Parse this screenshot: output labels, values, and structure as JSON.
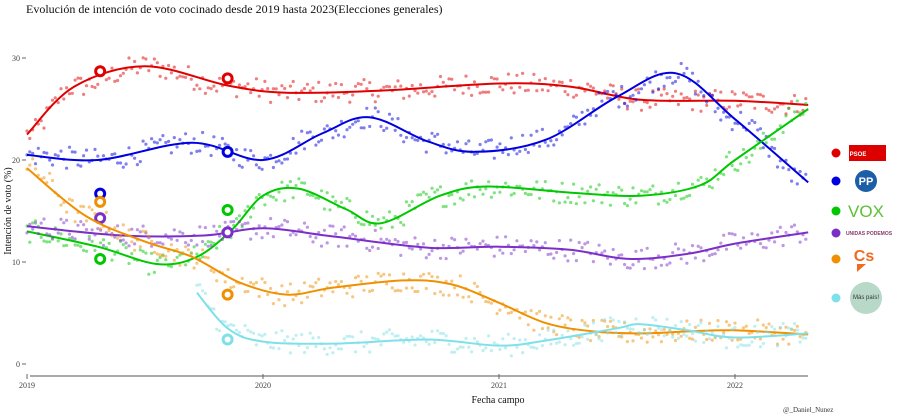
{
  "chart_data": {
    "type": "line",
    "title": "Evolución de intención de voto cocinado desde 2019 hasta 2023(Elecciones generales)",
    "xlabel": "Fecha campo",
    "ylabel": "Intención de voto (%)",
    "credit": "@_Daniel_Nunez",
    "xlim": [
      2019.0,
      2022.31
    ],
    "ylim": [
      -1.2,
      33.5
    ],
    "x_ticks": [
      {
        "v": 2019,
        "label": "2019"
      },
      {
        "v": 2020,
        "label": "2020"
      },
      {
        "v": 2021,
        "label": "2021"
      },
      {
        "v": 2022,
        "label": "2022"
      }
    ],
    "y_ticks": [
      {
        "v": 0,
        "label": "0"
      },
      {
        "v": 10,
        "label": "10"
      },
      {
        "v": 20,
        "label": "20"
      },
      {
        "v": 30,
        "label": "30"
      }
    ],
    "legend_position": "right",
    "elections": [
      2019.31,
      2019.85
    ],
    "series": [
      {
        "name": "PSOE",
        "color": "#e00000",
        "logo_text": "PSOE",
        "x": [
          2019.0,
          2019.2,
          2019.5,
          2019.85,
          2020.1,
          2020.5,
          2021.0,
          2021.3,
          2021.6,
          2022.0,
          2022.31
        ],
        "y": [
          22.5,
          27.2,
          29.2,
          27.3,
          26.6,
          26.8,
          27.5,
          27.2,
          25.9,
          25.8,
          25.4
        ],
        "election_results": [
          28.7,
          28.0
        ]
      },
      {
        "name": "PP",
        "color": "#0000e0",
        "logo_text": "PP",
        "x": [
          2019.0,
          2019.3,
          2019.7,
          2020.0,
          2020.25,
          2020.45,
          2020.7,
          2020.9,
          2021.2,
          2021.5,
          2021.75,
          2022.0,
          2022.31
        ],
        "y": [
          20.5,
          20.0,
          21.7,
          20.0,
          22.6,
          24.2,
          21.8,
          20.8,
          22.0,
          26.2,
          28.5,
          24.0,
          17.8
        ],
        "election_results": [
          16.7,
          20.8
        ]
      },
      {
        "name": "VOX",
        "color": "#00c800",
        "logo_text": "VOX",
        "x": [
          2019.0,
          2019.3,
          2019.55,
          2019.72,
          2019.87,
          2020.0,
          2020.15,
          2020.35,
          2020.5,
          2020.75,
          2020.95,
          2021.3,
          2021.6,
          2021.85,
          2022.0,
          2022.31
        ],
        "y": [
          13.0,
          11.5,
          9.8,
          10.5,
          13.2,
          16.5,
          17.2,
          15.2,
          13.8,
          16.5,
          17.4,
          16.8,
          16.5,
          17.5,
          20.0,
          25.0
        ],
        "election_results": [
          10.3,
          15.1
        ]
      },
      {
        "name": "Unidas Podemos",
        "color": "#7b2fc8",
        "logo_text": "UNIDAS PODEMOS",
        "x": [
          2019.0,
          2019.4,
          2019.75,
          2020.0,
          2020.3,
          2020.7,
          2021.0,
          2021.3,
          2021.55,
          2021.8,
          2022.0,
          2022.31
        ],
        "y": [
          13.5,
          12.6,
          12.6,
          13.3,
          12.5,
          11.4,
          11.5,
          11.2,
          10.3,
          10.8,
          11.8,
          12.9
        ],
        "election_results": [
          14.3,
          12.9
        ]
      },
      {
        "name": "Cs",
        "color": "#f09000",
        "logo_text": "Cs",
        "x": [
          2019.0,
          2019.25,
          2019.5,
          2019.7,
          2019.9,
          2020.1,
          2020.3,
          2020.6,
          2020.8,
          2021.0,
          2021.2,
          2021.4,
          2021.6,
          2021.8,
          2022.0,
          2022.31
        ],
        "y": [
          19.2,
          14.5,
          12.0,
          10.5,
          8.0,
          6.8,
          7.5,
          8.2,
          7.8,
          6.0,
          4.0,
          3.2,
          3.0,
          3.2,
          3.3,
          2.9
        ],
        "election_results": [
          15.9,
          6.8
        ]
      },
      {
        "name": "Más País",
        "color": "#80e0e8",
        "logo_text": "Más país!",
        "x": [
          2019.72,
          2019.85,
          2020.0,
          2020.3,
          2020.7,
          2021.0,
          2021.2,
          2021.5,
          2021.6,
          2021.8,
          2022.0,
          2022.31
        ],
        "y": [
          7.0,
          3.5,
          2.2,
          2.0,
          2.4,
          1.8,
          2.3,
          3.5,
          3.9,
          3.3,
          2.6,
          3.0
        ],
        "election_results": [
          null,
          2.4
        ]
      }
    ]
  }
}
